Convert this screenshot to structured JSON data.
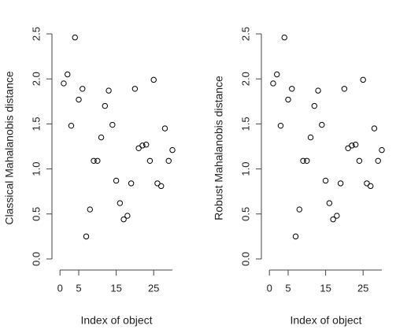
{
  "chart_data": [
    {
      "type": "scatter",
      "xlabel": "Index of object",
      "ylabel": "Classical Mahalanobis distance",
      "x": [
        1,
        2,
        3,
        4,
        5,
        6,
        7,
        8,
        9,
        10,
        11,
        12,
        13,
        14,
        15,
        16,
        17,
        18,
        19,
        20,
        21,
        22,
        23,
        24,
        25,
        26,
        27,
        28,
        29,
        30
      ],
      "values": [
        1.95,
        2.05,
        1.48,
        2.46,
        1.77,
        1.89,
        0.25,
        0.55,
        1.09,
        1.09,
        1.35,
        1.7,
        1.87,
        1.49,
        0.87,
        0.62,
        0.44,
        0.48,
        0.84,
        1.89,
        1.23,
        1.26,
        1.27,
        1.09,
        1.99,
        0.84,
        0.81,
        1.45,
        1.09,
        1.21
      ],
      "xlim": [
        -0.16,
        31.16
      ],
      "ylim": [
        -0.1,
        2.6
      ],
      "xticks": [
        0,
        5,
        15,
        25
      ],
      "yticks": [
        {
          "value": 0,
          "label": "0.0"
        },
        0.5,
        {
          "value": 1,
          "label": "1.0"
        },
        1.5,
        {
          "value": 2,
          "label": "2.0"
        },
        2.5
      ],
      "color": "#000000"
    },
    {
      "type": "scatter",
      "xlabel": "Index of object",
      "ylabel": "Robust Mahalanobis distance",
      "x": [
        1,
        2,
        3,
        4,
        5,
        6,
        7,
        8,
        9,
        10,
        11,
        12,
        13,
        14,
        15,
        16,
        17,
        18,
        19,
        20,
        21,
        22,
        23,
        24,
        25,
        26,
        27,
        28,
        29,
        30
      ],
      "values": [
        1.95,
        2.05,
        1.48,
        2.46,
        1.77,
        1.89,
        0.25,
        0.55,
        1.09,
        1.09,
        1.35,
        1.7,
        1.87,
        1.49,
        0.87,
        0.62,
        0.44,
        0.48,
        0.84,
        1.89,
        1.23,
        1.26,
        1.27,
        1.09,
        1.99,
        0.84,
        0.81,
        1.45,
        1.09,
        1.21
      ],
      "xlim": [
        -0.16,
        31.16
      ],
      "ylim": [
        -0.1,
        2.6
      ],
      "xticks": [
        0,
        5,
        15,
        25
      ],
      "yticks": [
        {
          "value": 0,
          "label": "0.0"
        },
        0.5,
        {
          "value": 1,
          "label": "1.0"
        },
        1.5,
        {
          "value": 2,
          "label": "2.0"
        },
        2.5
      ],
      "color": "#000000"
    }
  ]
}
